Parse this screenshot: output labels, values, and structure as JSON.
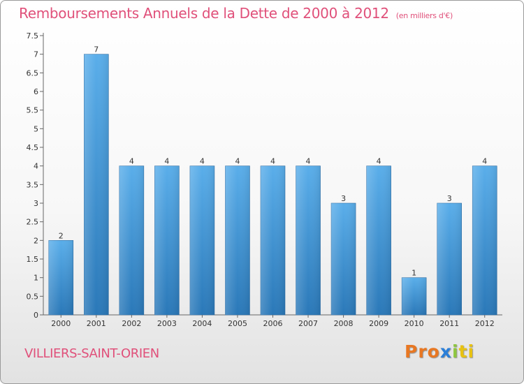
{
  "header": {
    "title": "Remboursements Annuels de la Dette de 2000 à 2012",
    "unit": "(en milliers d'€)"
  },
  "footer": {
    "commune": "VILLIERS-SAINT-ORIEN",
    "logo": [
      "Pro",
      "x",
      "i",
      "ti"
    ]
  },
  "colors": {
    "title": "#e0507a",
    "bar_top": "#5aaeea",
    "bar_bottom": "#2a78b8"
  },
  "chart_data": {
    "type": "bar",
    "title": "Remboursements Annuels de la Dette de 2000 à 2012",
    "subtitle": "(en milliers d'€)",
    "categories": [
      "2000",
      "2001",
      "2002",
      "2003",
      "2004",
      "2005",
      "2006",
      "2007",
      "2008",
      "2009",
      "2010",
      "2011",
      "2012"
    ],
    "values": [
      2,
      7,
      4,
      4,
      4,
      4,
      4,
      4,
      3,
      4,
      1,
      3,
      4
    ],
    "ylim": [
      0,
      7.5
    ],
    "yticks": [
      "0",
      "0.5",
      "1",
      "1.5",
      "2",
      "2.5",
      "3",
      "3.5",
      "4",
      "4.5",
      "5",
      "5.5",
      "6",
      "6.5",
      "7",
      "7.5"
    ],
    "grid": false,
    "legend": "none"
  }
}
